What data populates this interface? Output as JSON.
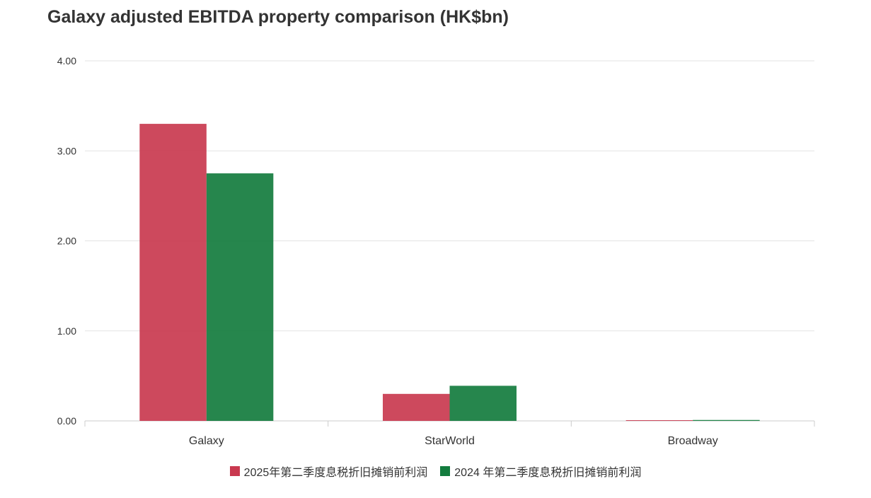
{
  "chart_data": {
    "type": "bar",
    "title": "Galaxy adjusted EBITDA property comparison (HK$bn)",
    "categories": [
      "Galaxy",
      "StarWorld",
      "Broadway"
    ],
    "series": [
      {
        "name": "2025年第二季度息税折旧摊销前利润",
        "values": [
          3.3,
          0.3,
          0.005
        ],
        "color": "#c9394f"
      },
      {
        "name": "2024 年第二季度息税折旧摊销前利润",
        "values": [
          2.75,
          0.39,
          0.01
        ],
        "color": "#137c3e"
      }
    ],
    "yticks": [
      "0.00",
      "1.00",
      "2.00",
      "3.00",
      "4.00"
    ],
    "ylim": [
      0,
      4
    ],
    "grid": true,
    "legend_position": "bottom"
  }
}
